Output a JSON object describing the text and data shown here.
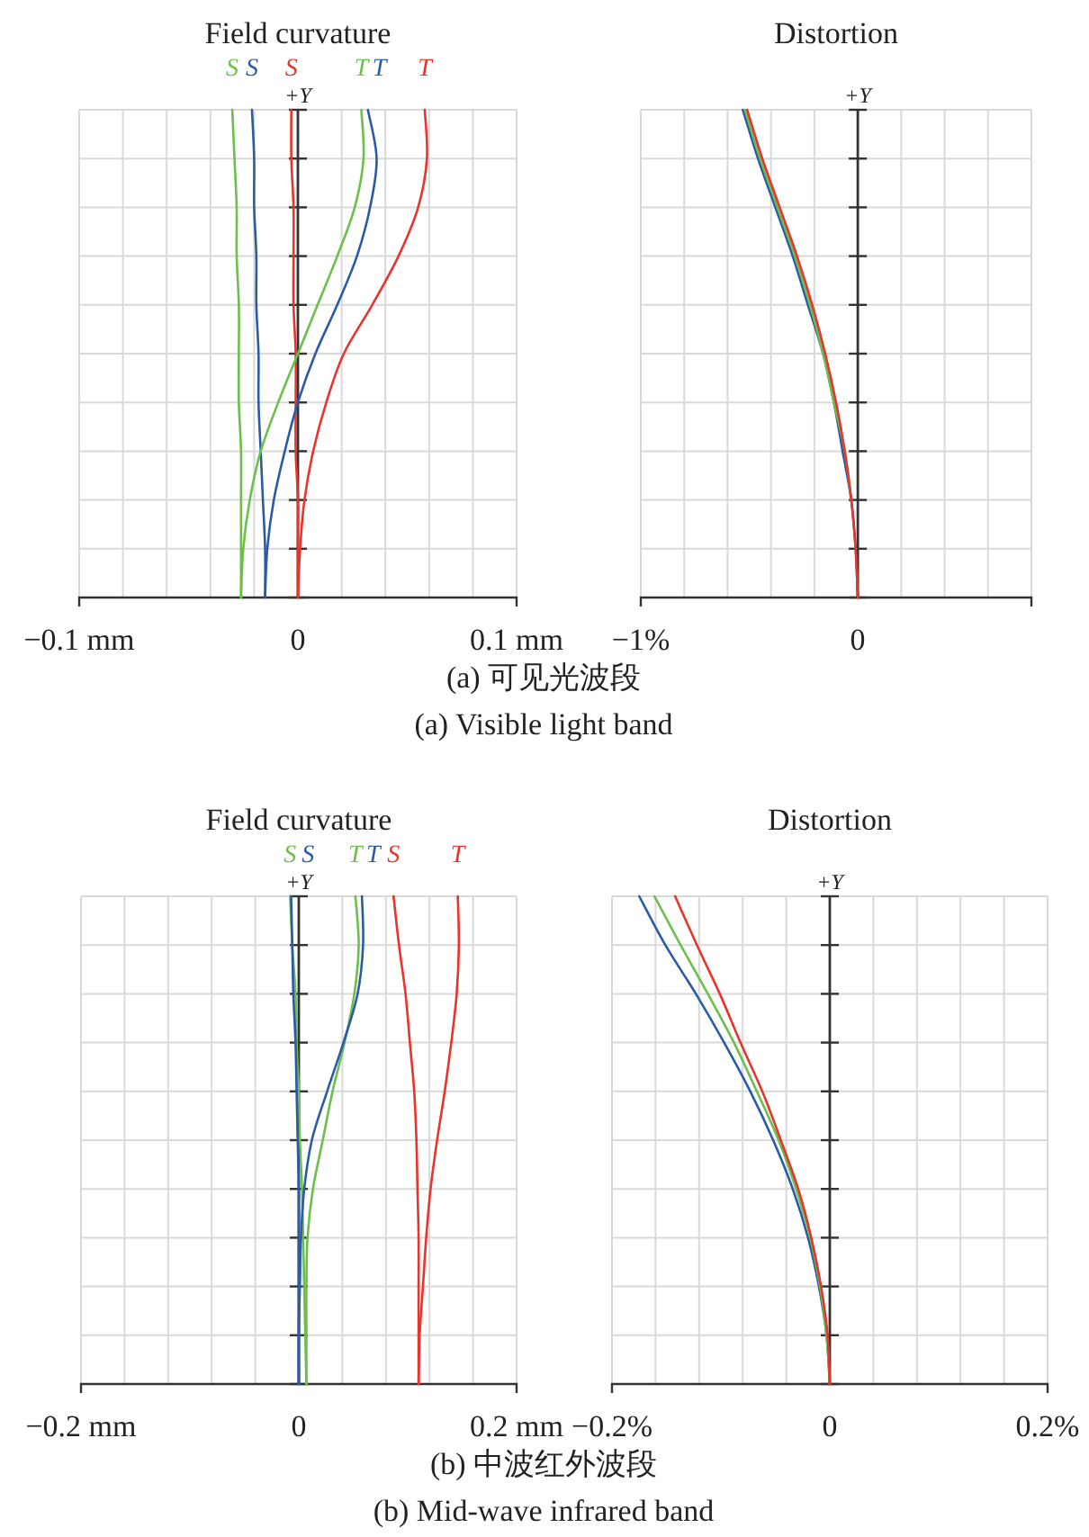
{
  "chart_data": [
    {
      "type": "line",
      "orientation": "horizontal",
      "title": "Field curvature",
      "ylabel": "+Y",
      "grid": true,
      "categories": [
        null,
        null,
        null,
        null,
        null,
        null,
        null,
        null,
        null,
        null,
        null
      ],
      "xlim": [
        -0.1,
        0.1
      ],
      "xticks": [
        {
          "value": -0.1,
          "label": "−0.1 mm"
        },
        {
          "value": -0.08,
          "label": null
        },
        {
          "value": -0.06,
          "label": null
        },
        {
          "value": -0.04,
          "label": null
        },
        {
          "value": -0.02,
          "label": null
        },
        {
          "value": 0,
          "label": "0"
        },
        {
          "value": 0.02,
          "label": null
        },
        {
          "value": 0.04,
          "label": null
        },
        {
          "value": 0.06,
          "label": null
        },
        {
          "value": 0.08,
          "label": null
        },
        {
          "value": 0.1,
          "label": "0.1 mm"
        }
      ],
      "series": [
        {
          "name": "S",
          "color": "#6cbf4a",
          "values": [
            -0.03,
            -0.029,
            -0.028,
            -0.028,
            -0.027,
            -0.027,
            -0.027,
            -0.026,
            -0.026,
            -0.026,
            -0.026
          ]
        },
        {
          "name": "S",
          "color": "#2b5ba8",
          "values": [
            -0.021,
            -0.02,
            -0.02,
            -0.019,
            -0.019,
            -0.018,
            -0.018,
            -0.017,
            -0.016,
            -0.015,
            -0.015
          ]
        },
        {
          "name": "S",
          "color": "#e8342c",
          "values": [
            -0.003,
            -0.003,
            -0.002,
            -0.002,
            -0.002,
            -0.001,
            -0.001,
            -0.001,
            0,
            0,
            0
          ]
        },
        {
          "name": "T",
          "color": "#6cbf4a",
          "values": [
            0.029,
            0.03,
            0.026,
            0.018,
            0.009,
            0,
            -0.009,
            -0.017,
            -0.022,
            -0.025,
            -0.026
          ]
        },
        {
          "name": "T",
          "color": "#2b5ba8",
          "values": [
            0.032,
            0.036,
            0.033,
            0.027,
            0.018,
            0.008,
            0,
            -0.006,
            -0.011,
            -0.014,
            -0.015
          ]
        },
        {
          "name": "T",
          "color": "#e8342c",
          "values": [
            0.058,
            0.059,
            0.055,
            0.046,
            0.034,
            0.021,
            0.013,
            0.007,
            0.003,
            0.001,
            0
          ]
        }
      ],
      "annotations": [
        "(a) 可见光波段",
        "(a) Visible light band"
      ]
    },
    {
      "type": "line",
      "orientation": "horizontal",
      "title": "Distortion",
      "ylabel": "+Y",
      "grid": true,
      "categories": [
        null,
        null,
        null,
        null,
        null,
        null,
        null,
        null,
        null,
        null,
        null
      ],
      "xlim": [
        -1,
        0.8
      ],
      "xticks": [
        {
          "value": -1,
          "label": "−1%"
        },
        {
          "value": -0.8,
          "label": null
        },
        {
          "value": -0.6,
          "label": null
        },
        {
          "value": -0.4,
          "label": null
        },
        {
          "value": -0.2,
          "label": null
        },
        {
          "value": 0,
          "label": "0"
        },
        {
          "value": 0.2,
          "label": null
        },
        {
          "value": 0.4,
          "label": null
        },
        {
          "value": 0.6,
          "label": null
        },
        {
          "value": 0.8,
          "label": null
        }
      ],
      "series": [
        {
          "color": "#2b5ba8",
          "values": [
            -0.53,
            -0.46,
            -0.38,
            -0.3,
            -0.23,
            -0.16,
            -0.11,
            -0.07,
            -0.03,
            -0.01,
            0
          ]
        },
        {
          "color": "#6cbf4a",
          "values": [
            -0.52,
            -0.45,
            -0.37,
            -0.29,
            -0.22,
            -0.16,
            -0.11,
            -0.06,
            -0.03,
            null,
            null
          ]
        },
        {
          "color": "#e8342c",
          "values": [
            -0.51,
            -0.44,
            -0.36,
            -0.28,
            -0.21,
            -0.15,
            -0.1,
            -0.06,
            -0.03,
            -0.01,
            0
          ]
        }
      ]
    },
    {
      "type": "line",
      "orientation": "horizontal",
      "title": "Field curvature",
      "ylabel": "+Y",
      "grid": true,
      "categories": [
        null,
        null,
        null,
        null,
        null,
        null,
        null,
        null,
        null,
        null,
        null
      ],
      "xlim": [
        -0.2,
        0.2
      ],
      "xticks": [
        {
          "value": -0.2,
          "label": "−0.2 mm"
        },
        {
          "value": -0.16,
          "label": null
        },
        {
          "value": -0.12,
          "label": null
        },
        {
          "value": -0.08,
          "label": null
        },
        {
          "value": -0.04,
          "label": null
        },
        {
          "value": 0,
          "label": "0"
        },
        {
          "value": 0.04,
          "label": null
        },
        {
          "value": 0.08,
          "label": null
        },
        {
          "value": 0.12,
          "label": null
        },
        {
          "value": 0.16,
          "label": null
        },
        {
          "value": 0.2,
          "label": "0.2 mm"
        }
      ],
      "series": [
        {
          "name": "S",
          "color": "#6cbf4a",
          "values": [
            -0.008,
            -0.006,
            -0.003,
            -0.002,
            0,
            0.001,
            0.003,
            0.004,
            0.005,
            0.006,
            0.007
          ]
        },
        {
          "name": "S",
          "color": "#2b5ba8",
          "values": [
            -0.007,
            -0.006,
            -0.005,
            -0.003,
            -0.002,
            -0.001,
            0,
            0,
            0,
            0,
            0
          ]
        },
        {
          "name": "T",
          "color": "#6cbf4a",
          "values": [
            0.052,
            0.055,
            0.051,
            0.042,
            0.031,
            0.022,
            0.013,
            0.008,
            0.007,
            0.007,
            0.007
          ]
        },
        {
          "name": "T",
          "color": "#2b5ba8",
          "values": [
            0.058,
            0.059,
            0.054,
            0.041,
            0.026,
            0.012,
            0.005,
            0.002,
            0.001,
            0,
            0
          ]
        },
        {
          "name": "S",
          "color": "#e8342c",
          "values": [
            0.087,
            0.092,
            0.098,
            0.102,
            0.106,
            0.108,
            0.109,
            0.11,
            0.11,
            0.11,
            0.11
          ]
        },
        {
          "name": "T",
          "color": "#e8342c",
          "values": [
            0.146,
            0.147,
            0.145,
            0.14,
            0.134,
            0.127,
            0.121,
            0.117,
            0.114,
            0.111,
            0.11
          ]
        }
      ],
      "annotations": [
        "(b) 中波红外波段",
        "(b) Mid-wave infrared band"
      ]
    },
    {
      "type": "line",
      "orientation": "horizontal",
      "title": "Distortion",
      "ylabel": "+Y",
      "grid": true,
      "categories": [
        null,
        null,
        null,
        null,
        null,
        null,
        null,
        null,
        null,
        null,
        null
      ],
      "xlim": [
        -0.2,
        0.2
      ],
      "xticks": [
        {
          "value": -0.2,
          "label": "−0.2%"
        },
        {
          "value": -0.16,
          "label": null
        },
        {
          "value": -0.12,
          "label": null
        },
        {
          "value": -0.08,
          "label": null
        },
        {
          "value": -0.04,
          "label": null
        },
        {
          "value": 0,
          "label": "0"
        },
        {
          "value": 0.04,
          "label": null
        },
        {
          "value": 0.08,
          "label": null
        },
        {
          "value": 0.12,
          "label": null
        },
        {
          "value": 0.16,
          "label": null
        },
        {
          "value": 0.2,
          "label": "0.2%"
        }
      ],
      "series": [
        {
          "color": "#2b5ba8",
          "values": [
            -0.175,
            -0.151,
            -0.123,
            -0.097,
            -0.073,
            -0.052,
            -0.034,
            -0.02,
            -0.01,
            -0.003,
            0
          ]
        },
        {
          "color": "#6cbf4a",
          "values": [
            -0.161,
            -0.137,
            -0.112,
            -0.088,
            -0.067,
            -0.047,
            -0.031,
            -0.018,
            -0.009,
            -0.003,
            0
          ]
        },
        {
          "color": "#e8342c",
          "values": [
            -0.142,
            -0.122,
            -0.101,
            -0.082,
            -0.062,
            -0.045,
            -0.029,
            -0.017,
            -0.008,
            -0.002,
            0
          ]
        }
      ]
    }
  ]
}
